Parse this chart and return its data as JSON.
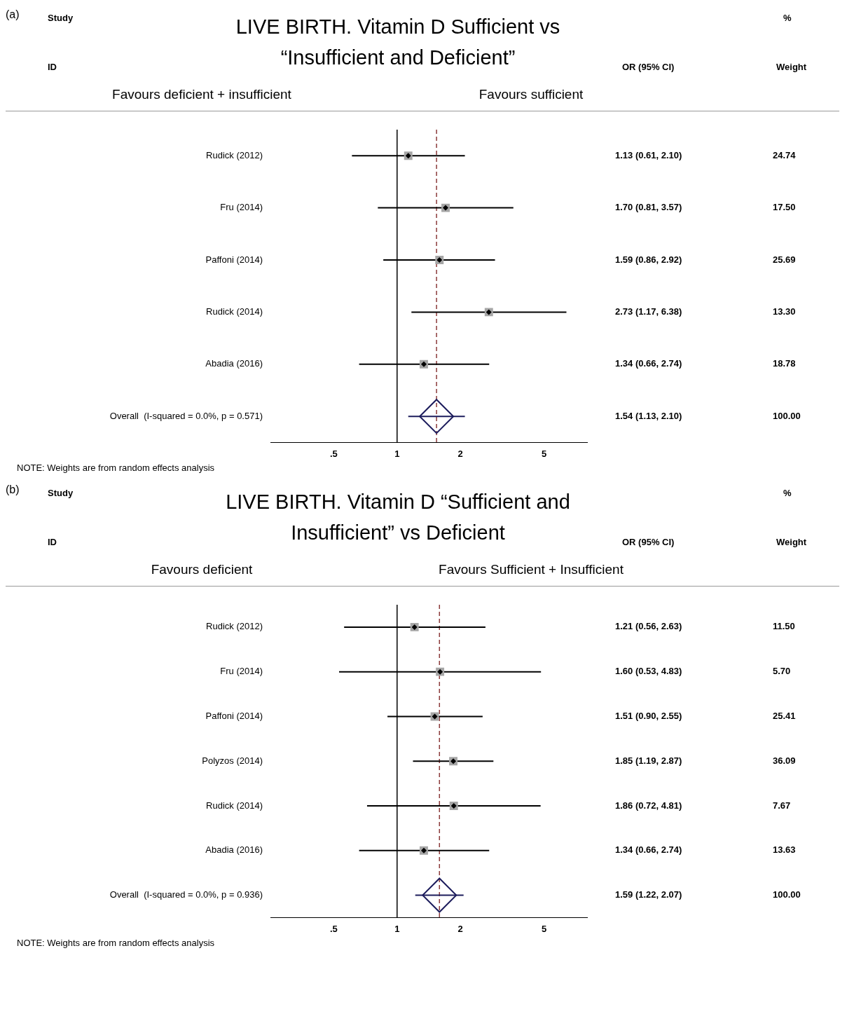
{
  "chart_data": [
    {
      "type": "scatter",
      "orientation": "horizontal",
      "title": "LIVE BIRTH. Vitamin D Sufficient vs “Insufficient and Deficient”",
      "log": "x",
      "grid": false,
      "categories": [
        "Rudick (2012)",
        "Fru (2014)",
        "Paffoni (2014)",
        "Rudick (2014)",
        "Abadia (2016)",
        "Overall  (I-squared = 0.0%, p = 0.571)"
      ],
      "xlim": [
        0.25,
        8
      ],
      "xticks": [
        {
          "value": 0.5,
          "label": ".5"
        },
        1,
        2,
        5
      ],
      "series": [
        {
          "color": "#a6a6a6",
          "marker": "square",
          "values": [
            1.13,
            1.7,
            1.59,
            2.73,
            1.34,
            null
          ],
          "errors": [
            [
              0.61,
              2.1
            ],
            [
              0.81,
              3.57
            ],
            [
              0.86,
              2.92
            ],
            [
              1.17,
              6.38
            ],
            [
              0.66,
              2.74
            ],
            null
          ],
          "value_labels": [
            "1.13 (0.61, 2.10)",
            "1.70 (0.81, 3.57)",
            "1.59 (0.86, 2.92)",
            "2.73 (1.17, 6.38)",
            "1.34 (0.66, 2.74)",
            null
          ]
        },
        {
          "color": "#1c1c5c",
          "marker": "diamond",
          "values": [
            null,
            null,
            null,
            null,
            null,
            1.54
          ],
          "errors": [
            null,
            null,
            null,
            null,
            null,
            [
              1.13,
              2.1
            ]
          ]
        }
      ],
      "ref_lines": [
        {
          "axis": "x",
          "value": 1,
          "color": "#000000",
          "line_style": "solid"
        },
        {
          "axis": "x",
          "value": 1.54,
          "color": "#8b3a3a",
          "line_style": "dashed"
        }
      ],
      "annotations": [
        "(a)",
        "Study",
        "ID",
        "OR (95% CI)",
        "%",
        "Weight",
        "Favours deficient + insufficient",
        "Favours sufficient",
        "NOTE: Weights are from random effects analysis",
        "1.54 (1.13, 2.10)",
        "24.74",
        "17.50",
        "25.69",
        "13.30",
        "18.78",
        "100.00"
      ]
    },
    {
      "type": "scatter",
      "orientation": "horizontal",
      "title": "LIVE BIRTH. Vitamin D “Sufficient and  Insufficient” vs  Deficient",
      "log": "x",
      "grid": false,
      "categories": [
        "Rudick (2012)",
        "Fru (2014)",
        "Paffoni (2014)",
        "Polyzos (2014)",
        "Rudick (2014)",
        "Abadia (2016)",
        "Overall  (I-squared = 0.0%, p = 0.936)"
      ],
      "xlim": [
        0.25,
        8
      ],
      "xticks": [
        {
          "value": 0.5,
          "label": ".5"
        },
        1,
        2,
        5
      ],
      "series": [
        {
          "color": "#a6a6a6",
          "marker": "square",
          "values": [
            1.21,
            1.6,
            1.51,
            1.85,
            1.86,
            1.34,
            null
          ],
          "errors": [
            [
              0.56,
              2.63
            ],
            [
              0.53,
              4.83
            ],
            [
              0.9,
              2.55
            ],
            [
              1.19,
              2.87
            ],
            [
              0.72,
              4.81
            ],
            [
              0.66,
              2.74
            ],
            null
          ],
          "value_labels": [
            "1.21 (0.56, 2.63)",
            "1.60 (0.53, 4.83)",
            "1.51 (0.90, 2.55)",
            "1.85 (1.19, 2.87)",
            "1.86 (0.72, 4.81)",
            "1.34 (0.66, 2.74)",
            null
          ]
        },
        {
          "color": "#1c1c5c",
          "marker": "diamond",
          "values": [
            null,
            null,
            null,
            null,
            null,
            null,
            1.59
          ],
          "errors": [
            null,
            null,
            null,
            null,
            null,
            null,
            [
              1.22,
              2.07
            ]
          ]
        }
      ],
      "ref_lines": [
        {
          "axis": "x",
          "value": 1,
          "color": "#000000",
          "line_style": "solid"
        },
        {
          "axis": "x",
          "value": 1.59,
          "color": "#8b3a3a",
          "line_style": "dashed"
        }
      ],
      "annotations": [
        "(b)",
        "Study",
        "ID",
        "OR (95% CI)",
        "%",
        "Weight",
        "Favours deficient",
        "Favours Sufficient + Insufficient",
        "NOTE: Weights are from random effects analysis",
        "1.59 (1.22, 2.07)",
        "11.50",
        "5.70",
        "25.41",
        "36.09",
        "7.67",
        "13.63",
        "100.00"
      ]
    }
  ]
}
